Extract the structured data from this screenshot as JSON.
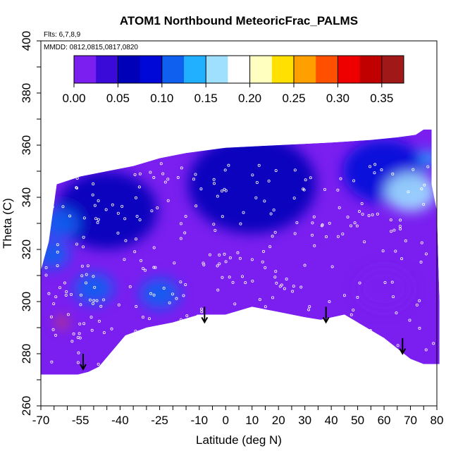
{
  "chart_data": {
    "type": "heatmap",
    "title": "ATOM1 Northbound MeteoricFrac_PALMS",
    "notes": [
      "Flts: 6,7,8,9",
      "MMDD: 0812,0815,0817,0820"
    ],
    "xlabel": "Latitude (deg N)",
    "ylabel": "Theta (C)",
    "xlim": [
      -70,
      80
    ],
    "ylim": [
      260,
      400
    ],
    "xticks": [
      "-70",
      "-55",
      "-40",
      "-25",
      "-10",
      "0",
      "10",
      "20",
      "30",
      "40",
      "50",
      "60",
      "70",
      "80"
    ],
    "xtick_values": [
      -70,
      -55,
      -40,
      -25,
      -10,
      0,
      10,
      20,
      30,
      40,
      50,
      60,
      70,
      80
    ],
    "yticks": [
      "260",
      "280",
      "300",
      "320",
      "340",
      "360",
      "380",
      "400"
    ],
    "ytick_values": [
      260,
      280,
      300,
      320,
      340,
      360,
      380,
      400
    ],
    "colorbar": {
      "ticks": [
        "0.00",
        "0.05",
        "0.10",
        "0.15",
        "0.20",
        "0.25",
        "0.30",
        "0.35"
      ],
      "tick_values": [
        0,
        0.05,
        0.1,
        0.15,
        0.2,
        0.25,
        0.3,
        0.35
      ],
      "range": [
        0,
        0.375
      ],
      "colors": [
        "#7a1ff0",
        "#3a0ad8",
        "#0000b8",
        "#0008d8",
        "#1060f0",
        "#20b0ff",
        "#a0e0ff",
        "#ffffff",
        "#ffffc0",
        "#ffe000",
        "#ffa000",
        "#ff5000",
        "#ee0000",
        "#c00000",
        "#a01818"
      ]
    },
    "boundary_top": [
      [
        -70,
        312
      ],
      [
        -67,
        323
      ],
      [
        -64,
        345
      ],
      [
        -55,
        348
      ],
      [
        -45,
        350
      ],
      [
        -35,
        352
      ],
      [
        -25,
        355
      ],
      [
        -15,
        357
      ],
      [
        0,
        359
      ],
      [
        20,
        360
      ],
      [
        40,
        361
      ],
      [
        55,
        362
      ],
      [
        65,
        363
      ],
      [
        72,
        364
      ],
      [
        75,
        366
      ],
      [
        78,
        366
      ],
      [
        78,
        345
      ],
      [
        80,
        335
      ],
      [
        81,
        300
      ]
    ],
    "boundary_bottom": [
      [
        -70,
        272
      ],
      [
        -56,
        272
      ],
      [
        -52,
        273
      ],
      [
        -48,
        275
      ],
      [
        -38,
        287
      ],
      [
        -30,
        290
      ],
      [
        -20,
        292
      ],
      [
        -10,
        295
      ],
      [
        0,
        295
      ],
      [
        10,
        298
      ],
      [
        20,
        296
      ],
      [
        30,
        294
      ],
      [
        36,
        293
      ],
      [
        45,
        295
      ],
      [
        60,
        286
      ],
      [
        70,
        278
      ],
      [
        75,
        276
      ],
      [
        81,
        276
      ]
    ],
    "arrows": [
      [
        -54,
        280
      ],
      [
        -8,
        298
      ],
      [
        38,
        298
      ],
      [
        67,
        286
      ]
    ],
    "region_values": [
      {
        "lat": -5,
        "theta": 315,
        "value": 0.0
      },
      {
        "lat": 35,
        "theta": 318,
        "value": 0.0
      },
      {
        "lat": 60,
        "theta": 305,
        "value": 0.02
      },
      {
        "lat": -45,
        "theta": 335,
        "value": 0.06
      },
      {
        "lat": 10,
        "theta": 345,
        "value": 0.05
      },
      {
        "lat": 60,
        "theta": 350,
        "value": 0.08
      },
      {
        "lat": 70,
        "theta": 342,
        "value": 0.17
      },
      {
        "lat": -63,
        "theta": 330,
        "value": 0.12
      },
      {
        "lat": -25,
        "theta": 303,
        "value": 0.12
      },
      {
        "lat": -50,
        "theta": 305,
        "value": 0.1
      },
      {
        "lat": -66,
        "theta": 318,
        "value": 0.1
      },
      {
        "lat": 77,
        "theta": 355,
        "value": 0.14
      },
      {
        "lat": -62,
        "theta": 292,
        "value": 0.3
      }
    ]
  }
}
